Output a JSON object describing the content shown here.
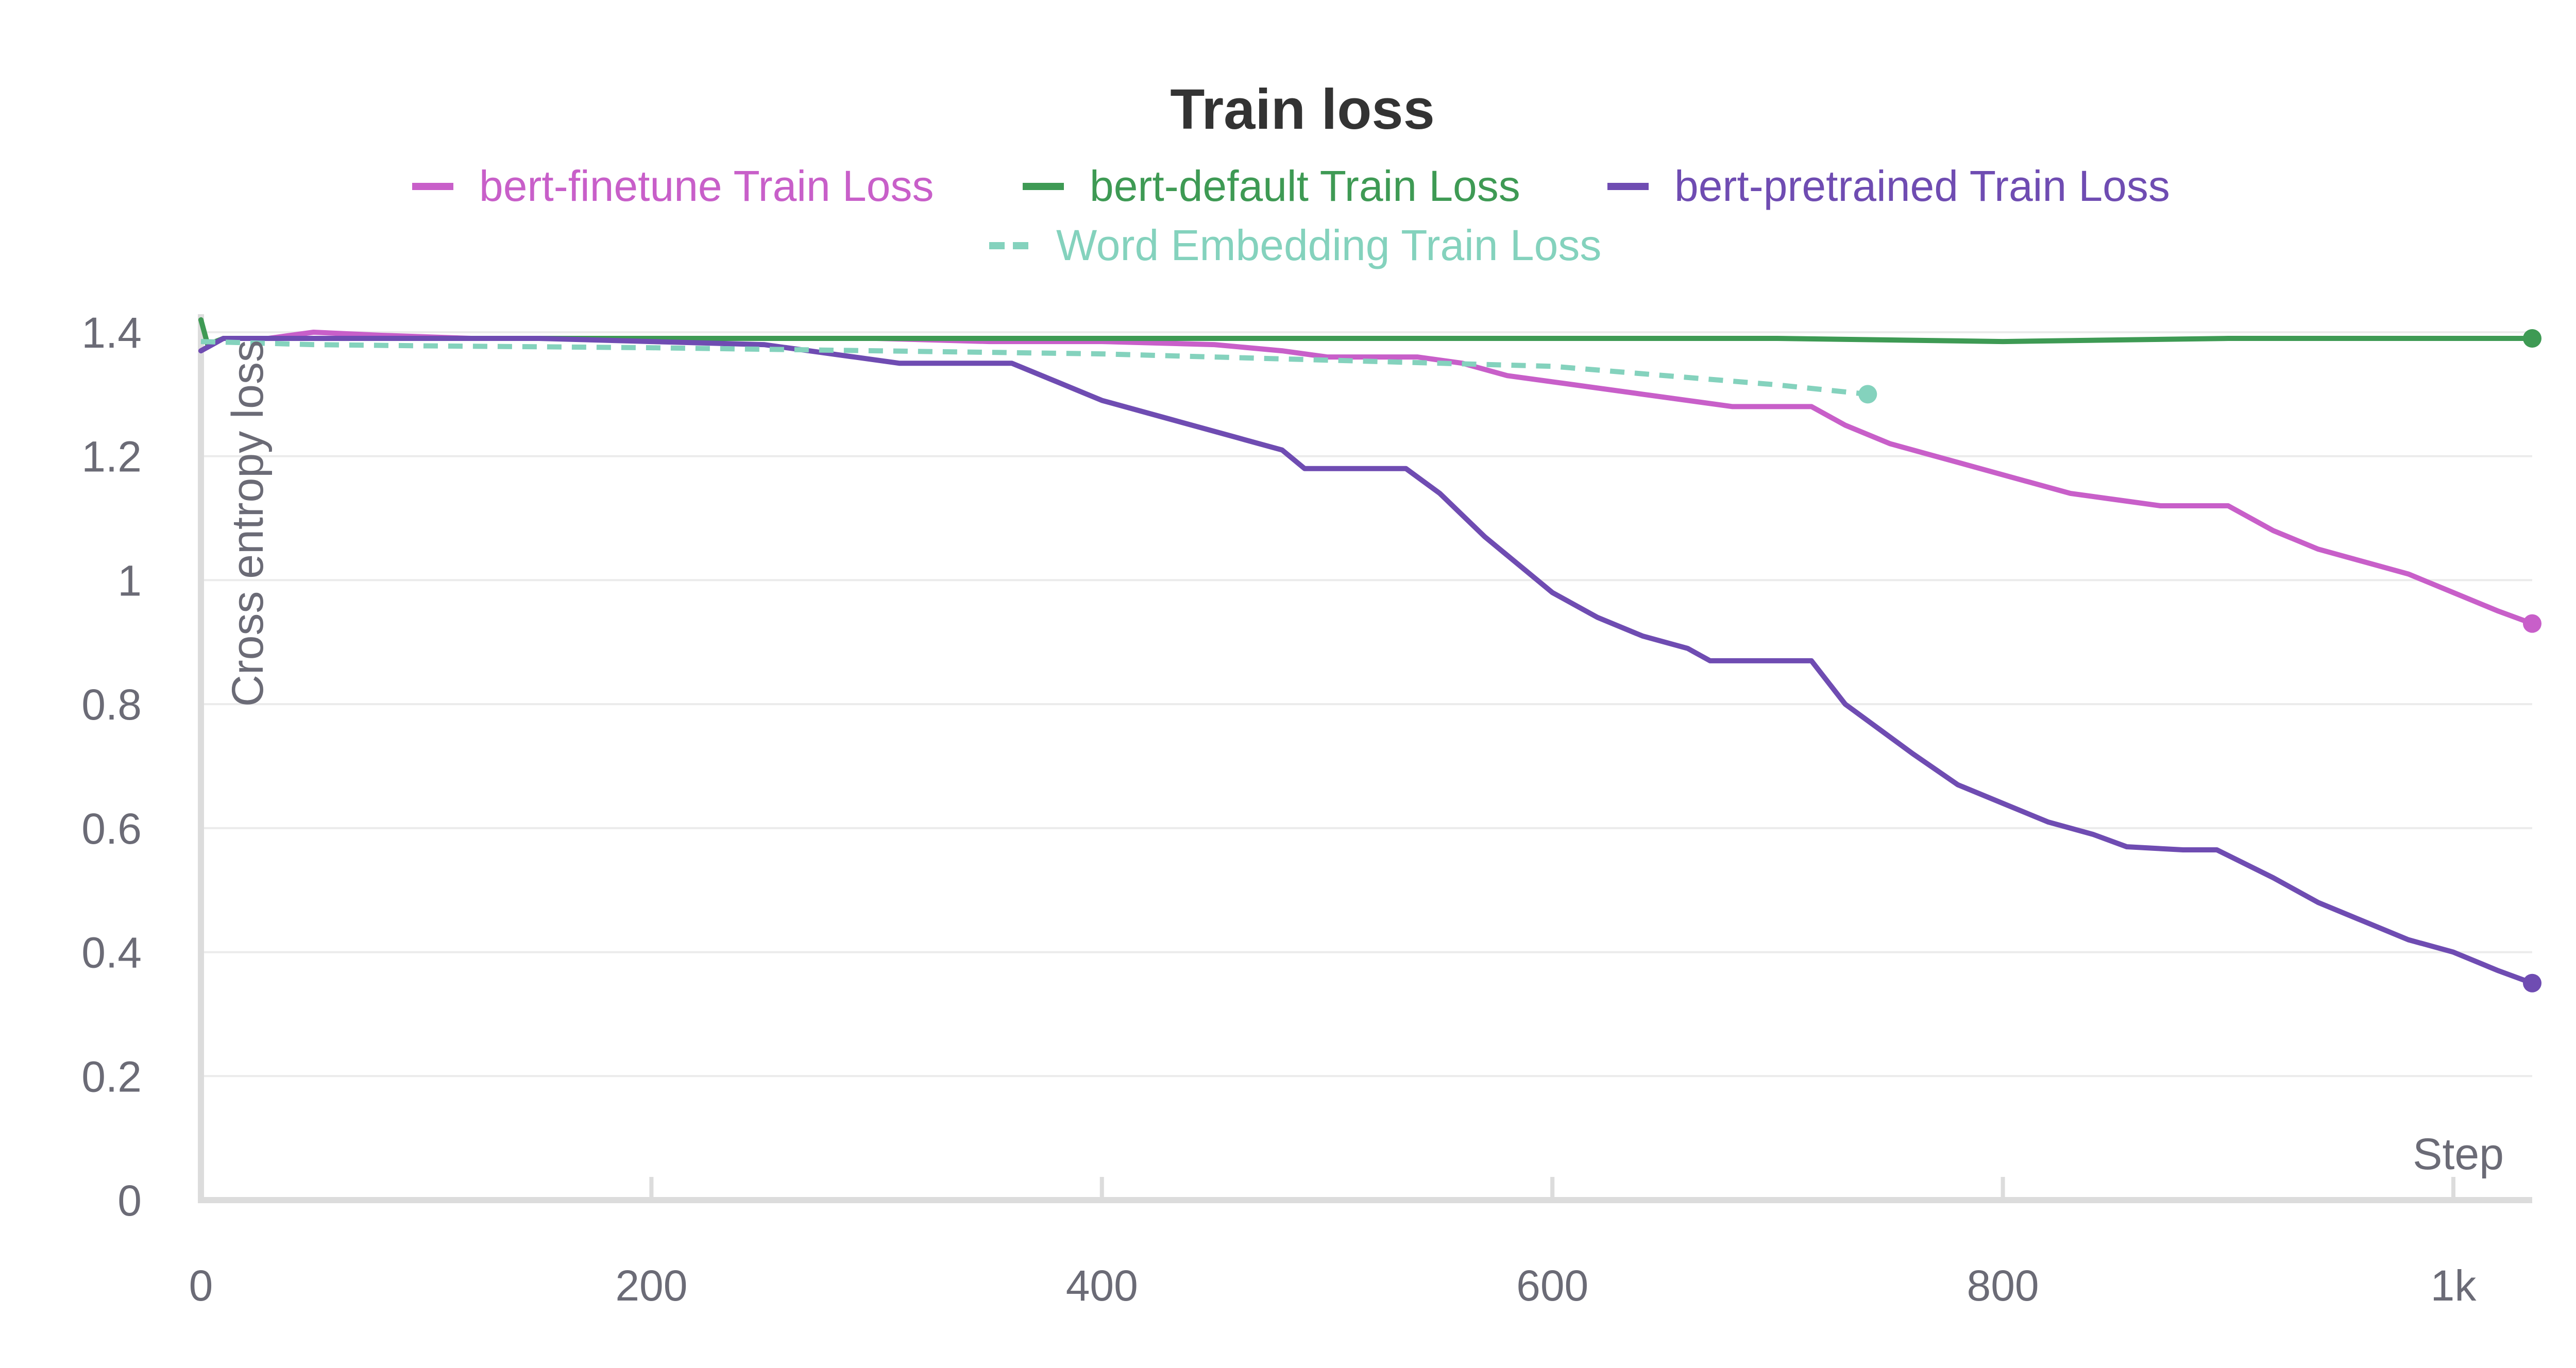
{
  "chart_data": {
    "type": "line",
    "title": "Train loss",
    "xlabel": "Step",
    "ylabel": "Cross entropy loss",
    "xlim": [
      0,
      1035
    ],
    "ylim": [
      0,
      1.4
    ],
    "grid": true,
    "legend_position": "top",
    "x_ticks": [
      {
        "value": 0,
        "label": "0"
      },
      {
        "value": 200,
        "label": "200"
      },
      {
        "value": 400,
        "label": "400"
      },
      {
        "value": 600,
        "label": "600"
      },
      {
        "value": 800,
        "label": "800"
      },
      {
        "value": 1000,
        "label": "1k"
      }
    ],
    "y_ticks": [
      {
        "value": 0,
        "label": "0"
      },
      {
        "value": 0.2,
        "label": "0.2"
      },
      {
        "value": 0.4,
        "label": "0.4"
      },
      {
        "value": 0.6,
        "label": "0.6"
      },
      {
        "value": 0.8,
        "label": "0.8"
      },
      {
        "value": 1.0,
        "label": "1"
      },
      {
        "value": 1.2,
        "label": "1.2"
      },
      {
        "value": 1.4,
        "label": "1.4"
      }
    ],
    "series": [
      {
        "name": "bert-finetune Train Loss",
        "color": "#c85fc9",
        "dash": false,
        "x": [
          0,
          5,
          10,
          20,
          30,
          40,
          50,
          80,
          120,
          160,
          200,
          250,
          300,
          350,
          400,
          450,
          480,
          500,
          520,
          540,
          560,
          580,
          600,
          620,
          640,
          660,
          680,
          700,
          715,
          730,
          750,
          770,
          790,
          810,
          830,
          850,
          870,
          890,
          900,
          920,
          940,
          960,
          980,
          1000,
          1020,
          1035
        ],
        "y": [
          1.37,
          1.38,
          1.39,
          1.39,
          1.39,
          1.395,
          1.4,
          1.395,
          1.39,
          1.39,
          1.39,
          1.39,
          1.39,
          1.385,
          1.385,
          1.38,
          1.37,
          1.36,
          1.36,
          1.36,
          1.35,
          1.33,
          1.32,
          1.31,
          1.3,
          1.29,
          1.28,
          1.28,
          1.28,
          1.25,
          1.22,
          1.2,
          1.18,
          1.16,
          1.14,
          1.13,
          1.12,
          1.12,
          1.12,
          1.08,
          1.05,
          1.03,
          1.01,
          0.98,
          0.95,
          0.93
        ]
      },
      {
        "name": "bert-default Train Loss",
        "color": "#3e9a54",
        "dash": false,
        "x": [
          0,
          3,
          10,
          50,
          100,
          200,
          300,
          400,
          500,
          600,
          700,
          800,
          900,
          1000,
          1035
        ],
        "y": [
          1.42,
          1.38,
          1.39,
          1.39,
          1.39,
          1.39,
          1.39,
          1.39,
          1.39,
          1.39,
          1.39,
          1.385,
          1.39,
          1.39,
          1.39
        ]
      },
      {
        "name": "bert-pretrained Train Loss",
        "color": "#6f4cb2",
        "dash": false,
        "x": [
          0,
          5,
          10,
          20,
          50,
          100,
          150,
          200,
          250,
          270,
          290,
          310,
          360,
          380,
          400,
          430,
          460,
          480,
          490,
          510,
          535,
          550,
          570,
          600,
          620,
          640,
          660,
          670,
          700,
          715,
          730,
          760,
          780,
          800,
          820,
          840,
          855,
          880,
          895,
          920,
          940,
          960,
          980,
          1000,
          1020,
          1035
        ],
        "y": [
          1.37,
          1.38,
          1.39,
          1.39,
          1.39,
          1.39,
          1.39,
          1.385,
          1.38,
          1.37,
          1.36,
          1.35,
          1.35,
          1.32,
          1.29,
          1.26,
          1.23,
          1.21,
          1.18,
          1.18,
          1.18,
          1.14,
          1.07,
          0.98,
          0.94,
          0.91,
          0.89,
          0.87,
          0.87,
          0.87,
          0.8,
          0.72,
          0.67,
          0.64,
          0.61,
          0.59,
          0.57,
          0.565,
          0.565,
          0.52,
          0.48,
          0.45,
          0.42,
          0.4,
          0.37,
          0.35
        ]
      },
      {
        "name": "Word Embedding Train Loss",
        "color": "#84d2bd",
        "dash": true,
        "x": [
          0,
          50,
          100,
          200,
          300,
          400,
          500,
          600,
          700,
          740
        ],
        "y": [
          1.385,
          1.38,
          1.378,
          1.375,
          1.37,
          1.365,
          1.355,
          1.345,
          1.315,
          1.3
        ]
      }
    ]
  }
}
